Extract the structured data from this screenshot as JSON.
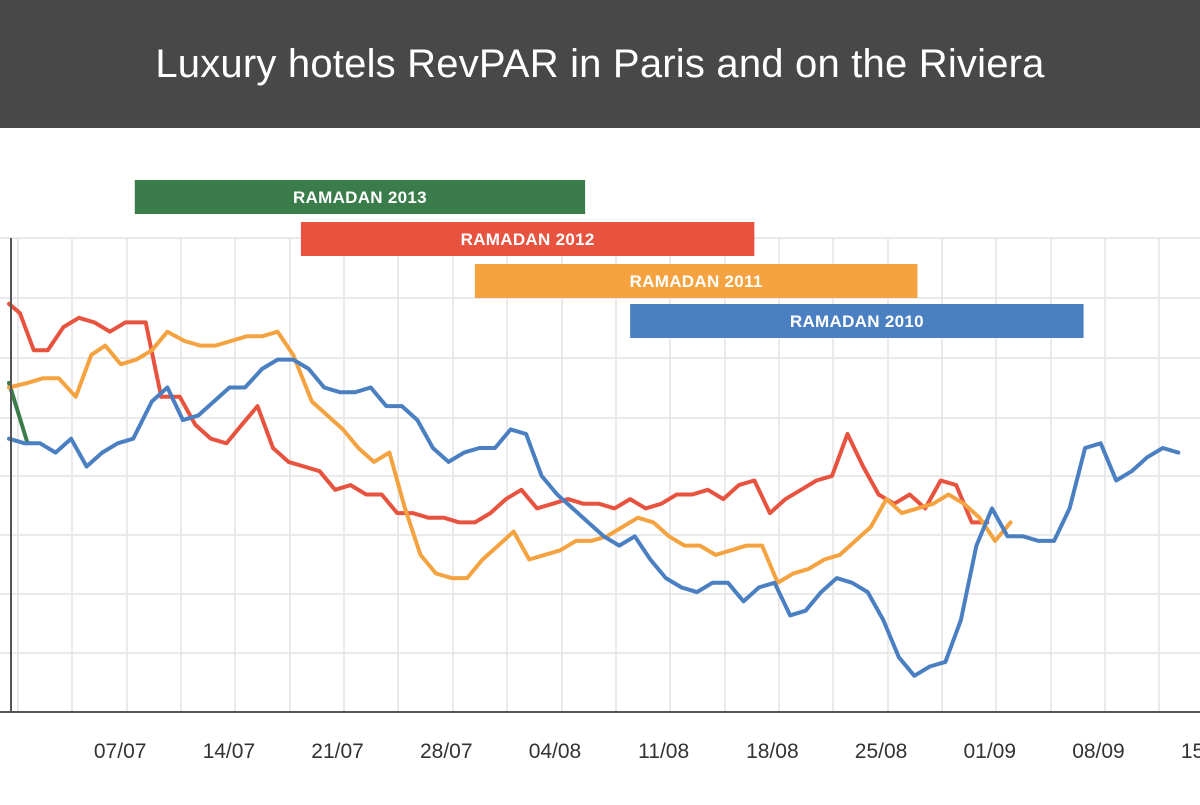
{
  "header": {
    "title": "Luxury hotels RevPAR in Paris and on the Riviera"
  },
  "colors": {
    "header_bg": "#484848",
    "grid": "#e4e4e4",
    "axis": "#555555",
    "tick_text": "#333333"
  },
  "chart_data": {
    "type": "line",
    "title": "Luxury hotels RevPAR in Paris and on the Riviera",
    "xlabel": "",
    "ylabel": "",
    "x_unit": "days from 01/07",
    "x_range": [
      0,
      80
    ],
    "y_range": [
      0,
      100
    ],
    "grid": true,
    "tick_labels": [
      {
        "label": "07/07",
        "x": 6
      },
      {
        "label": "14/07",
        "x": 13
      },
      {
        "label": "21/07",
        "x": 20
      },
      {
        "label": "28/07",
        "x": 27
      },
      {
        "label": "04/08",
        "x": 34
      },
      {
        "label": "11/08",
        "x": 41
      },
      {
        "label": "18/08",
        "x": 48
      },
      {
        "label": "25/08",
        "x": 55
      },
      {
        "label": "01/09",
        "x": 62
      },
      {
        "label": "08/09",
        "x": 69
      },
      {
        "label": "15/09",
        "x": 76
      }
    ],
    "ramadan_bars": [
      {
        "label": "RAMADAN 2013",
        "start": 8.1,
        "end": 37.1,
        "color": "#3a7c4a"
      },
      {
        "label": "RAMADAN 2012",
        "start": 18.8,
        "end": 48.0,
        "color": "#e8533f"
      },
      {
        "label": "RAMADAN 2011",
        "start": 30.0,
        "end": 58.5,
        "color": "#f4a340"
      },
      {
        "label": "RAMADAN 2010",
        "start": 40.0,
        "end": 69.2,
        "color": "#4a7fc1"
      }
    ],
    "series": [
      {
        "name": "2013",
        "color": "#3a7c4a",
        "points": [
          [
            0,
            71
          ],
          [
            1.2,
            58
          ]
        ]
      },
      {
        "name": "2012",
        "color": "#e8533f",
        "points": [
          [
            0,
            88
          ],
          [
            0.7,
            86
          ],
          [
            1.6,
            78
          ],
          [
            2.5,
            78
          ],
          [
            3.5,
            83
          ],
          [
            4.5,
            85
          ],
          [
            5.5,
            84
          ],
          [
            6.5,
            82
          ],
          [
            7.5,
            84
          ],
          [
            8.8,
            84
          ],
          [
            9.8,
            68
          ],
          [
            11,
            68
          ],
          [
            12,
            62
          ],
          [
            13,
            59
          ],
          [
            14,
            58
          ],
          [
            15,
            62
          ],
          [
            16,
            66
          ],
          [
            17,
            57
          ],
          [
            18,
            54
          ],
          [
            19,
            53
          ],
          [
            20,
            52
          ],
          [
            21,
            48
          ],
          [
            22,
            49
          ],
          [
            23,
            47
          ],
          [
            24,
            47
          ],
          [
            25,
            43
          ],
          [
            26,
            43
          ],
          [
            27,
            42
          ],
          [
            28,
            42
          ],
          [
            29,
            41
          ],
          [
            30,
            41
          ],
          [
            31,
            43
          ],
          [
            32,
            46
          ],
          [
            33,
            48
          ],
          [
            34,
            44
          ],
          [
            35,
            45
          ],
          [
            36,
            46
          ],
          [
            37,
            45
          ],
          [
            38,
            45
          ],
          [
            39,
            44
          ],
          [
            40,
            46
          ],
          [
            41,
            44
          ],
          [
            42,
            45
          ],
          [
            43,
            47
          ],
          [
            44,
            47
          ],
          [
            45,
            48
          ],
          [
            46,
            46
          ],
          [
            47,
            49
          ],
          [
            48,
            50
          ],
          [
            49,
            43
          ],
          [
            50,
            46
          ],
          [
            51,
            48
          ],
          [
            52,
            50
          ],
          [
            53,
            51
          ],
          [
            54,
            60
          ],
          [
            55,
            53
          ],
          [
            56,
            47
          ],
          [
            57,
            45
          ],
          [
            58,
            47
          ],
          [
            59,
            44
          ],
          [
            60,
            50
          ],
          [
            61,
            49
          ],
          [
            62,
            41
          ],
          [
            63,
            41
          ]
        ]
      },
      {
        "name": "2011",
        "color": "#f4a340",
        "points": [
          [
            0,
            70
          ],
          [
            1.2,
            71
          ],
          [
            2.2,
            72
          ],
          [
            3.2,
            72
          ],
          [
            4.3,
            68
          ],
          [
            5.3,
            77
          ],
          [
            6.2,
            79
          ],
          [
            7.2,
            75
          ],
          [
            8.2,
            76
          ],
          [
            9.2,
            78
          ],
          [
            10.2,
            82
          ],
          [
            11.3,
            80
          ],
          [
            12.3,
            79
          ],
          [
            13.3,
            79
          ],
          [
            14.3,
            80
          ],
          [
            15.3,
            81
          ],
          [
            16.3,
            81
          ],
          [
            17.3,
            82
          ],
          [
            18.3,
            77
          ],
          [
            19.5,
            67
          ],
          [
            20.5,
            64
          ],
          [
            21.5,
            61
          ],
          [
            22.5,
            57
          ],
          [
            23.5,
            54
          ],
          [
            24.5,
            56
          ],
          [
            25.5,
            44
          ],
          [
            26.5,
            34
          ],
          [
            27.5,
            30
          ],
          [
            28.5,
            29
          ],
          [
            29.5,
            29
          ],
          [
            30.5,
            33
          ],
          [
            31.5,
            36
          ],
          [
            32.5,
            39
          ],
          [
            33.5,
            33
          ],
          [
            34.5,
            34
          ],
          [
            35.5,
            35
          ],
          [
            36.5,
            37
          ],
          [
            37.5,
            37
          ],
          [
            38.5,
            38
          ],
          [
            39.5,
            40
          ],
          [
            40.5,
            42
          ],
          [
            41.5,
            41
          ],
          [
            42.5,
            38
          ],
          [
            43.5,
            36
          ],
          [
            44.5,
            36
          ],
          [
            45.5,
            34
          ],
          [
            46.5,
            35
          ],
          [
            47.5,
            36
          ],
          [
            48.5,
            36
          ],
          [
            49.5,
            28
          ],
          [
            50.5,
            30
          ],
          [
            51.5,
            31
          ],
          [
            52.5,
            33
          ],
          [
            53.5,
            34
          ],
          [
            54.5,
            37
          ],
          [
            55.5,
            40
          ],
          [
            56.5,
            46
          ],
          [
            57.5,
            43
          ],
          [
            58.5,
            44
          ],
          [
            59.5,
            45
          ],
          [
            60.5,
            47
          ],
          [
            61.5,
            45
          ],
          [
            62.5,
            42
          ],
          [
            63.5,
            37
          ],
          [
            64.5,
            41
          ]
        ]
      },
      {
        "name": "2010",
        "color": "#4a7fc1",
        "points": [
          [
            0,
            59
          ],
          [
            1,
            58
          ],
          [
            2,
            58
          ],
          [
            3,
            56
          ],
          [
            4,
            59
          ],
          [
            5,
            53
          ],
          [
            6,
            56
          ],
          [
            7,
            58
          ],
          [
            8,
            59
          ],
          [
            9.2,
            67
          ],
          [
            10.2,
            70
          ],
          [
            11.2,
            63
          ],
          [
            12.2,
            64
          ],
          [
            13.2,
            67
          ],
          [
            14.2,
            70
          ],
          [
            15.2,
            70
          ],
          [
            16.3,
            74
          ],
          [
            17.3,
            76
          ],
          [
            18.3,
            76
          ],
          [
            19.3,
            74
          ],
          [
            20.3,
            70
          ],
          [
            21.3,
            69
          ],
          [
            22.3,
            69
          ],
          [
            23.3,
            70
          ],
          [
            24.3,
            66
          ],
          [
            25.3,
            66
          ],
          [
            26.3,
            63
          ],
          [
            27.3,
            57
          ],
          [
            28.3,
            54
          ],
          [
            29.3,
            56
          ],
          [
            30.3,
            57
          ],
          [
            31.3,
            57
          ],
          [
            32.3,
            61
          ],
          [
            33.3,
            60
          ],
          [
            34.3,
            51
          ],
          [
            35.3,
            47
          ],
          [
            36.3,
            44
          ],
          [
            37.3,
            41
          ],
          [
            38.3,
            38
          ],
          [
            39.3,
            36
          ],
          [
            40.3,
            38
          ],
          [
            41.3,
            33
          ],
          [
            42.3,
            29
          ],
          [
            43.3,
            27
          ],
          [
            44.3,
            26
          ],
          [
            45.3,
            28
          ],
          [
            46.3,
            28
          ],
          [
            47.3,
            24
          ],
          [
            48.3,
            27
          ],
          [
            49.3,
            28
          ],
          [
            50.3,
            21
          ],
          [
            51.3,
            22
          ],
          [
            52.3,
            26
          ],
          [
            53.3,
            29
          ],
          [
            54.3,
            28
          ],
          [
            55.3,
            26
          ],
          [
            56.3,
            20
          ],
          [
            57.3,
            12
          ],
          [
            58.3,
            8
          ],
          [
            59.3,
            10
          ],
          [
            60.3,
            11
          ],
          [
            61.3,
            20
          ],
          [
            62.3,
            36
          ],
          [
            63.3,
            44
          ],
          [
            64.3,
            38
          ],
          [
            65.3,
            38
          ],
          [
            66.3,
            37
          ],
          [
            67.3,
            37
          ],
          [
            68.3,
            44
          ],
          [
            69.3,
            57
          ],
          [
            70.3,
            58
          ],
          [
            71.3,
            50
          ],
          [
            72.3,
            52
          ],
          [
            73.3,
            55
          ],
          [
            74.3,
            57
          ],
          [
            75.3,
            56
          ]
        ]
      }
    ]
  }
}
